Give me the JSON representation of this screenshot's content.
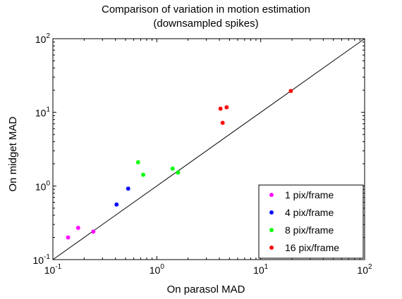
{
  "chart_data": {
    "type": "scatter",
    "title_lines": [
      "Comparison of variation in motion estimation",
      "(downsampled spikes)"
    ],
    "xlabel": "On parasol MAD",
    "ylabel": "On midget MAD",
    "xscale": "log",
    "yscale": "log",
    "xlim": [
      0.1,
      100
    ],
    "ylim": [
      0.1,
      100
    ],
    "x_ticks": [
      {
        "value": 0.1,
        "base": "10",
        "exp": "-1"
      },
      {
        "value": 1,
        "base": "10",
        "exp": "0"
      },
      {
        "value": 10,
        "base": "10",
        "exp": "1"
      },
      {
        "value": 100,
        "base": "10",
        "exp": "2"
      }
    ],
    "y_ticks": [
      {
        "value": 0.1,
        "base": "10",
        "exp": "-1"
      },
      {
        "value": 1,
        "base": "10",
        "exp": "0"
      },
      {
        "value": 10,
        "base": "10",
        "exp": "1"
      },
      {
        "value": 100,
        "base": "10",
        "exp": "2"
      }
    ],
    "grid": false,
    "reference_line": "y = x",
    "legend_position": "bottom-right",
    "series": [
      {
        "name": "1 pix/frame",
        "color": "#ff00ff",
        "marker": "asterisk",
        "points": [
          [
            0.14,
            0.2
          ],
          [
            0.175,
            0.27
          ],
          [
            0.245,
            0.24
          ]
        ]
      },
      {
        "name": "4 pix/frame",
        "color": "#0000ff",
        "marker": "asterisk",
        "points": [
          [
            0.41,
            0.56
          ],
          [
            0.53,
            0.92
          ]
        ]
      },
      {
        "name": "8 pix/frame",
        "color": "#00ff00",
        "marker": "asterisk",
        "points": [
          [
            0.66,
            2.1
          ],
          [
            0.74,
            1.42
          ],
          [
            1.42,
            1.72
          ],
          [
            1.6,
            1.52
          ]
        ]
      },
      {
        "name": "16 pix/frame",
        "color": "#ff0000",
        "marker": "asterisk",
        "points": [
          [
            4.1,
            11.2
          ],
          [
            4.7,
            11.7
          ],
          [
            4.3,
            7.2
          ],
          [
            19.5,
            19.5
          ]
        ]
      }
    ]
  }
}
